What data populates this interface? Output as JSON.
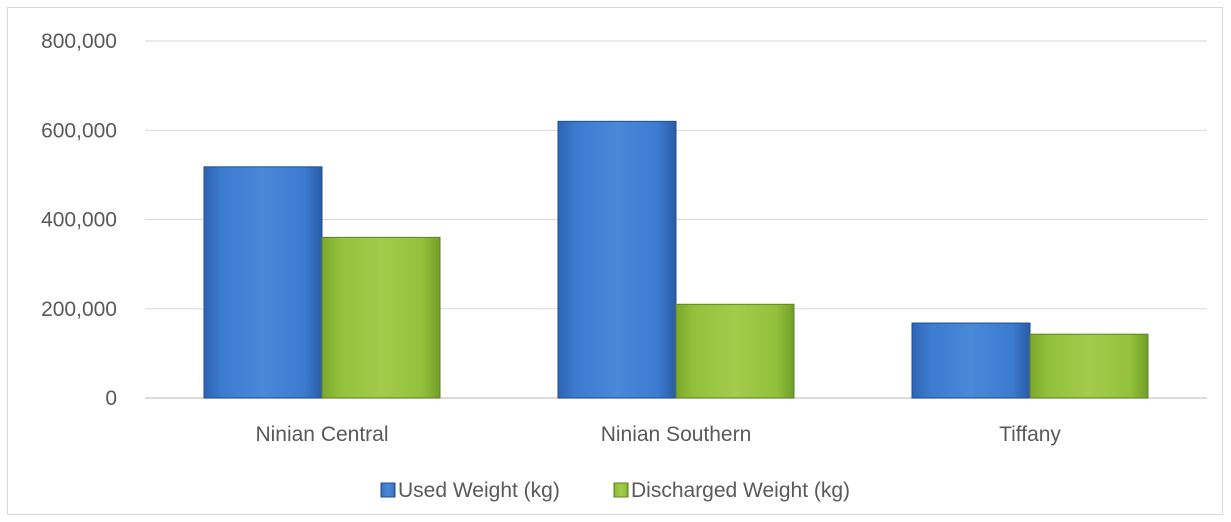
{
  "chart_data": {
    "type": "bar",
    "title": "",
    "xlabel": "",
    "ylabel": "",
    "categories": [
      "Ninian Central",
      "Ninian Southern",
      "Tiffany"
    ],
    "series": [
      {
        "name": "Used Weight (kg)",
        "values": [
          518000,
          620000,
          168000
        ],
        "color": "#3a78cc"
      },
      {
        "name": "Discharged Weight (kg)",
        "values": [
          360000,
          210000,
          143000
        ],
        "color": "#8fbe3a"
      }
    ],
    "ylim": [
      0,
      800000
    ],
    "yticks": [
      0,
      200000,
      400000,
      600000,
      800000
    ],
    "ytick_labels": [
      "0",
      "200,000",
      "400,000",
      "600,000",
      "800,000"
    ],
    "grid": true,
    "legend_position": "bottom"
  }
}
